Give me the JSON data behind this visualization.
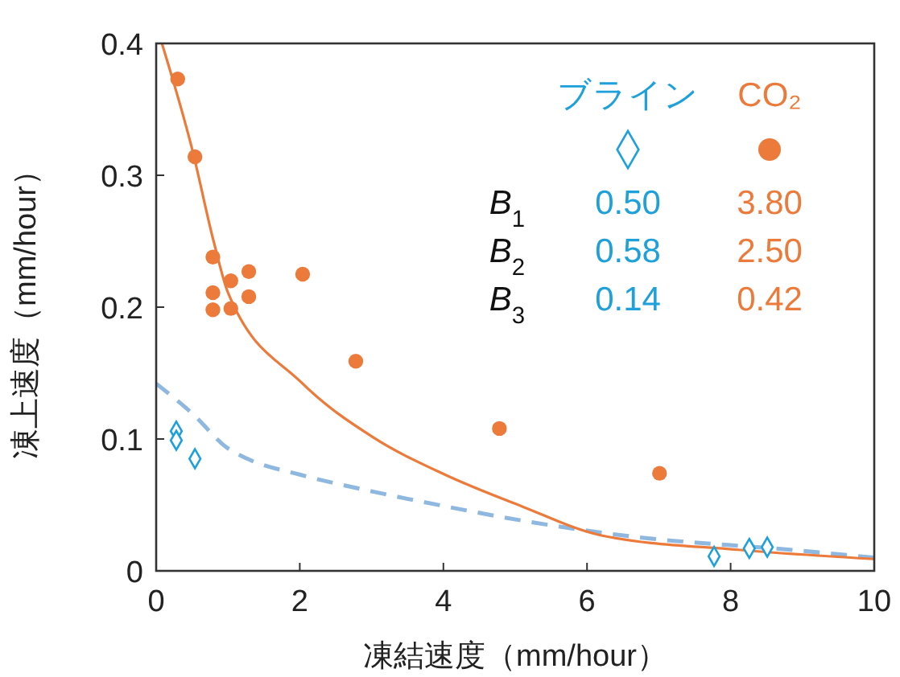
{
  "chart_data": {
    "type": "scatter",
    "xlabel": "凍結速度（mm/hour）",
    "ylabel": "凍上速度（mm/hour）",
    "xlim": [
      0,
      10
    ],
    "ylim": [
      0,
      0.4
    ],
    "xticks": [
      0,
      2,
      4,
      6,
      8,
      10
    ],
    "yticks": [
      0,
      0.1,
      0.2,
      0.3,
      0.4
    ],
    "grid": false,
    "legend": "top right",
    "series": [
      {
        "name": "ブライン",
        "marker": "diamond",
        "color": "#1ea0db",
        "x": [
          0.28,
          0.28,
          0.54,
          7.77,
          8.26,
          8.51
        ],
        "values": [
          0.106,
          0.099,
          0.085,
          0.011,
          0.017,
          0.018
        ]
      },
      {
        "name": "CO₂",
        "marker": "circle",
        "color": "#ec7a3a",
        "x": [
          0.3,
          0.54,
          0.79,
          0.79,
          0.79,
          1.04,
          1.04,
          1.29,
          1.29,
          2.04,
          2.78,
          4.78,
          7.01
        ],
        "values": [
          0.373,
          0.314,
          0.238,
          0.211,
          0.198,
          0.22,
          0.199,
          0.227,
          0.208,
          0.225,
          0.159,
          0.108,
          0.074
        ]
      },
      {
        "type": "line",
        "line_style": "dashed",
        "color": "#8fb8e0",
        "x": [
          0,
          0.53,
          0.97,
          1.27,
          2,
          3.03,
          4.02,
          5.22,
          6.63,
          8.83,
          10
        ],
        "values": [
          0.142,
          0.118,
          0.094,
          0.085,
          0.073,
          0.06,
          0.049,
          0.037,
          0.026,
          0.016,
          0.01
        ]
      },
      {
        "type": "line",
        "line_style": "solid",
        "color": "#ec7a3a",
        "x": [
          0.08,
          0.5,
          0.8,
          1,
          2.02,
          3.03,
          4.02,
          5.09,
          6.19,
          8.1,
          10
        ],
        "values": [
          0.4,
          0.32,
          0.25,
          0.211,
          0.143,
          0.101,
          0.073,
          0.049,
          0.027,
          0.016,
          0.009
        ]
      }
    ],
    "annotations": [
      "B$_{1}$",
      "0.50",
      "3.80",
      "B$_{2}$",
      "0.58",
      "2.50",
      "B$_{3}$",
      "0.14",
      "0.42"
    ]
  }
}
